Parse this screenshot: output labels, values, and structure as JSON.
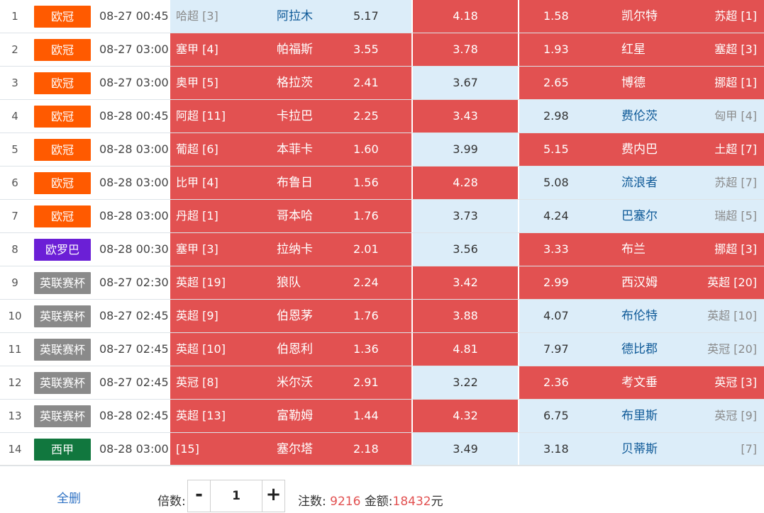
{
  "colors": {
    "selected": "#e25151",
    "unselected": "#dcedf9",
    "link": "#2f72c4"
  },
  "league_colors": {
    "欧冠": "lg-orange",
    "欧罗巴": "lg-purple",
    "英联赛杯": "lg-gray",
    "西甲": "lg-green"
  },
  "matches": [
    {
      "index": "1",
      "league": "欧冠",
      "time": "08-27 00:45",
      "home_rank": "哈超 [3]",
      "home": "阿拉木",
      "home_odds": "5.17",
      "draw_odds": "4.18",
      "away_odds": "1.58",
      "away": "凯尔特",
      "away_rank": "苏超 [1]",
      "home_sel": false,
      "draw_sel": true,
      "away_sel": true
    },
    {
      "index": "2",
      "league": "欧冠",
      "time": "08-27 03:00",
      "home_rank": "塞甲 [4]",
      "home": "帕福斯",
      "home_odds": "3.55",
      "draw_odds": "3.78",
      "away_odds": "1.93",
      "away": "红星",
      "away_rank": "塞超 [3]",
      "home_sel": true,
      "draw_sel": true,
      "away_sel": true
    },
    {
      "index": "3",
      "league": "欧冠",
      "time": "08-27 03:00",
      "home_rank": "奥甲 [5]",
      "home": "格拉茨",
      "home_odds": "2.41",
      "draw_odds": "3.67",
      "away_odds": "2.65",
      "away": "博德",
      "away_rank": "挪超 [1]",
      "home_sel": true,
      "draw_sel": false,
      "away_sel": true
    },
    {
      "index": "4",
      "league": "欧冠",
      "time": "08-28 00:45",
      "home_rank": "阿超 [11]",
      "home": "卡拉巴",
      "home_odds": "2.25",
      "draw_odds": "3.43",
      "away_odds": "2.98",
      "away": "费伦茨",
      "away_rank": "匈甲 [4]",
      "home_sel": true,
      "draw_sel": true,
      "away_sel": false
    },
    {
      "index": "5",
      "league": "欧冠",
      "time": "08-28 03:00",
      "home_rank": "葡超 [6]",
      "home": "本菲卡",
      "home_odds": "1.60",
      "draw_odds": "3.99",
      "away_odds": "5.15",
      "away": "费内巴",
      "away_rank": "土超 [7]",
      "home_sel": true,
      "draw_sel": false,
      "away_sel": true
    },
    {
      "index": "6",
      "league": "欧冠",
      "time": "08-28 03:00",
      "home_rank": "比甲 [4]",
      "home": "布鲁日",
      "home_odds": "1.56",
      "draw_odds": "4.28",
      "away_odds": "5.08",
      "away": "流浪者",
      "away_rank": "苏超 [7]",
      "home_sel": true,
      "draw_sel": true,
      "away_sel": false
    },
    {
      "index": "7",
      "league": "欧冠",
      "time": "08-28 03:00",
      "home_rank": "丹超 [1]",
      "home": "哥本哈",
      "home_odds": "1.76",
      "draw_odds": "3.73",
      "away_odds": "4.24",
      "away": "巴塞尔",
      "away_rank": "瑞超 [5]",
      "home_sel": true,
      "draw_sel": false,
      "away_sel": false
    },
    {
      "index": "8",
      "league": "欧罗巴",
      "time": "08-28 00:30",
      "home_rank": "塞甲 [3]",
      "home": "拉纳卡",
      "home_odds": "2.01",
      "draw_odds": "3.56",
      "away_odds": "3.33",
      "away": "布兰",
      "away_rank": "挪超 [3]",
      "home_sel": true,
      "draw_sel": false,
      "away_sel": true
    },
    {
      "index": "9",
      "league": "英联赛杯",
      "time": "08-27 02:30",
      "home_rank": "英超 [19]",
      "home": "狼队",
      "home_odds": "2.24",
      "draw_odds": "3.42",
      "away_odds": "2.99",
      "away": "西汉姆",
      "away_rank": "英超 [20]",
      "home_sel": true,
      "draw_sel": true,
      "away_sel": true
    },
    {
      "index": "10",
      "league": "英联赛杯",
      "time": "08-27 02:45",
      "home_rank": "英超 [9]",
      "home": "伯恩茅",
      "home_odds": "1.76",
      "draw_odds": "3.88",
      "away_odds": "4.07",
      "away": "布伦特",
      "away_rank": "英超 [10]",
      "home_sel": true,
      "draw_sel": true,
      "away_sel": false
    },
    {
      "index": "11",
      "league": "英联赛杯",
      "time": "08-27 02:45",
      "home_rank": "英超 [10]",
      "home": "伯恩利",
      "home_odds": "1.36",
      "draw_odds": "4.81",
      "away_odds": "7.97",
      "away": "德比郡",
      "away_rank": "英冠 [20]",
      "home_sel": true,
      "draw_sel": true,
      "away_sel": false
    },
    {
      "index": "12",
      "league": "英联赛杯",
      "time": "08-27 02:45",
      "home_rank": "英冠 [8]",
      "home": "米尔沃",
      "home_odds": "2.91",
      "draw_odds": "3.22",
      "away_odds": "2.36",
      "away": "考文垂",
      "away_rank": "英冠 [3]",
      "home_sel": true,
      "draw_sel": false,
      "away_sel": true
    },
    {
      "index": "13",
      "league": "英联赛杯",
      "time": "08-28 02:45",
      "home_rank": "英超 [13]",
      "home": "富勒姆",
      "home_odds": "1.44",
      "draw_odds": "4.32",
      "away_odds": "6.75",
      "away": "布里斯",
      "away_rank": "英冠 [9]",
      "home_sel": true,
      "draw_sel": true,
      "away_sel": false
    },
    {
      "index": "14",
      "league": "西甲",
      "time": "08-28 03:00",
      "home_rank": "[15]",
      "home": "塞尔塔",
      "home_odds": "2.18",
      "draw_odds": "3.49",
      "away_odds": "3.18",
      "away": "贝蒂斯",
      "away_rank": "[7]",
      "home_sel": true,
      "draw_sel": false,
      "away_sel": false
    }
  ],
  "footer": {
    "clear_all": "全删",
    "multiplier_label": "倍数:",
    "minus": "-",
    "plus": "+",
    "multiplier_value": "1",
    "bets_label": "注数:",
    "bets_value": "9216",
    "amount_label": "金额:",
    "amount_value": "18432",
    "currency": "元"
  }
}
